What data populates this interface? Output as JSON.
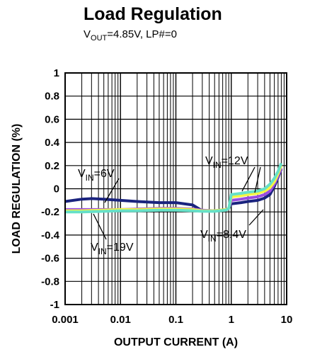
{
  "chart_data": {
    "type": "line",
    "title": "Load Regulation",
    "subtitle": {
      "v": "V",
      "sub": "OUT",
      "rest": "=4.85V, LP#=0"
    },
    "xlabel": "OUTPUT CURRENT (A)",
    "ylabel": "LOAD REGULATION (%)",
    "x_scale": "log",
    "xlim": [
      0.001,
      10
    ],
    "ylim": [
      -1,
      1
    ],
    "grid": true,
    "x_ticks": [
      "0.001",
      "0.01",
      "0.1",
      "1",
      "10"
    ],
    "y_ticks": [
      "1",
      "0.8",
      "0.6",
      "0.4",
      "0.2",
      "0",
      "-0.2",
      "-0.4",
      "-0.6",
      "-0.8",
      "-1"
    ],
    "series": [
      {
        "name": "VIN=6V",
        "color": "#1a237e",
        "x": [
          0.001,
          0.002,
          0.003,
          0.005,
          0.01,
          0.02,
          0.05,
          0.1,
          0.2,
          0.3,
          0.5,
          0.8,
          0.9,
          1,
          1.5,
          2,
          3,
          4,
          5,
          6,
          7,
          8
        ],
        "y": [
          -0.11,
          -0.09,
          -0.085,
          -0.09,
          -0.1,
          -0.11,
          -0.12,
          -0.12,
          -0.14,
          -0.19,
          -0.19,
          -0.18,
          -0.17,
          -0.13,
          -0.12,
          -0.11,
          -0.1,
          -0.08,
          -0.05,
          0.02,
          0.1,
          0.17
        ]
      },
      {
        "name": "VIN=8.4V",
        "color": "#9b4de0",
        "x": [
          0.001,
          0.002,
          0.005,
          0.01,
          0.02,
          0.05,
          0.1,
          0.2,
          0.3,
          0.5,
          0.8,
          0.9,
          1,
          1.5,
          2,
          3,
          4,
          5,
          6,
          7,
          8
        ],
        "y": [
          -0.18,
          -0.18,
          -0.18,
          -0.18,
          -0.175,
          -0.17,
          -0.17,
          -0.175,
          -0.185,
          -0.19,
          -0.18,
          -0.17,
          -0.1,
          -0.09,
          -0.08,
          -0.07,
          -0.05,
          -0.02,
          0.04,
          0.11,
          0.18
        ]
      },
      {
        "name": "VIN=12V",
        "color": "#f5f542",
        "x": [
          0.001,
          0.002,
          0.005,
          0.01,
          0.02,
          0.05,
          0.1,
          0.2,
          0.3,
          0.5,
          0.8,
          0.9,
          1,
          1.5,
          2,
          3,
          4,
          5,
          6,
          7,
          8
        ],
        "y": [
          -0.19,
          -0.19,
          -0.185,
          -0.18,
          -0.18,
          -0.175,
          -0.175,
          -0.18,
          -0.19,
          -0.19,
          -0.18,
          -0.17,
          -0.07,
          -0.06,
          -0.05,
          -0.04,
          -0.02,
          0.01,
          0.06,
          0.13,
          0.2
        ]
      },
      {
        "name": "VIN=19V",
        "color": "#66e0c8",
        "x": [
          0.001,
          0.002,
          0.005,
          0.01,
          0.02,
          0.05,
          0.1,
          0.2,
          0.3,
          0.5,
          0.8,
          0.9,
          1,
          1.5,
          2,
          3,
          4,
          5,
          6,
          7,
          8
        ],
        "y": [
          -0.2,
          -0.2,
          -0.195,
          -0.19,
          -0.19,
          -0.185,
          -0.185,
          -0.19,
          -0.195,
          -0.195,
          -0.185,
          -0.17,
          -0.05,
          -0.04,
          -0.03,
          -0.02,
          0.0,
          0.04,
          0.09,
          0.15,
          0.22
        ]
      }
    ],
    "annotations": [
      {
        "v": "V",
        "sub": "IN",
        "rest": "=6V"
      },
      {
        "v": "V",
        "sub": "IN",
        "rest": "=19V"
      },
      {
        "v": "V",
        "sub": "IN",
        "rest": "=12V"
      },
      {
        "v": "V",
        "sub": "IN",
        "rest": "=8.4V"
      }
    ]
  }
}
